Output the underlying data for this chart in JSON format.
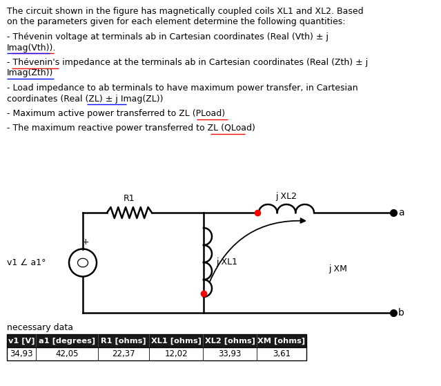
{
  "bg_color": "#ffffff",
  "text_color": "#000000",
  "header_bg": "#1a1a1a",
  "header_fg": "#ffffff",
  "font_family": "DejaVu Sans",
  "title_line1": "The circuit shown in the figure has magnetically coupled coils XL1 and XL2. Based",
  "title_line2": "on the parameters given for each element determine the following quantities:",
  "b1_line1": "- Thévenin voltage at terminals ab in Cartesian coordinates (Real (Vth) ± j",
  "b1_line2": "Imag(Vth)).",
  "b2_line1": "- Thévenin's impedance at the terminals ab in Cartesian coordinates (Real (Zth) ± j",
  "b2_line2": "Imag(Zth))",
  "b3_line1": "- Load impedance to ab terminals to have maximum power transfer, in Cartesian",
  "b3_line2": "coordinates (Real (ZL) ± j Imag(ZL))",
  "b4": "- Maximum active power transferred to ZL (PLoad)",
  "b5": "- The maximum reactive power transferred to ZL (QLoad)",
  "necessary_data": "necessary data",
  "table_headers": [
    "v1 [V]",
    "a1 [degrees]",
    "R1 [ohms]",
    "XL1 [ohms]",
    "XL2 [ohms]",
    "XM [ohms]"
  ],
  "table_values": [
    "34,93",
    "42,05",
    "22,37",
    "12,02",
    "33,93",
    "3,61"
  ],
  "figw": 6.39,
  "figh": 5.59,
  "dpi": 100
}
